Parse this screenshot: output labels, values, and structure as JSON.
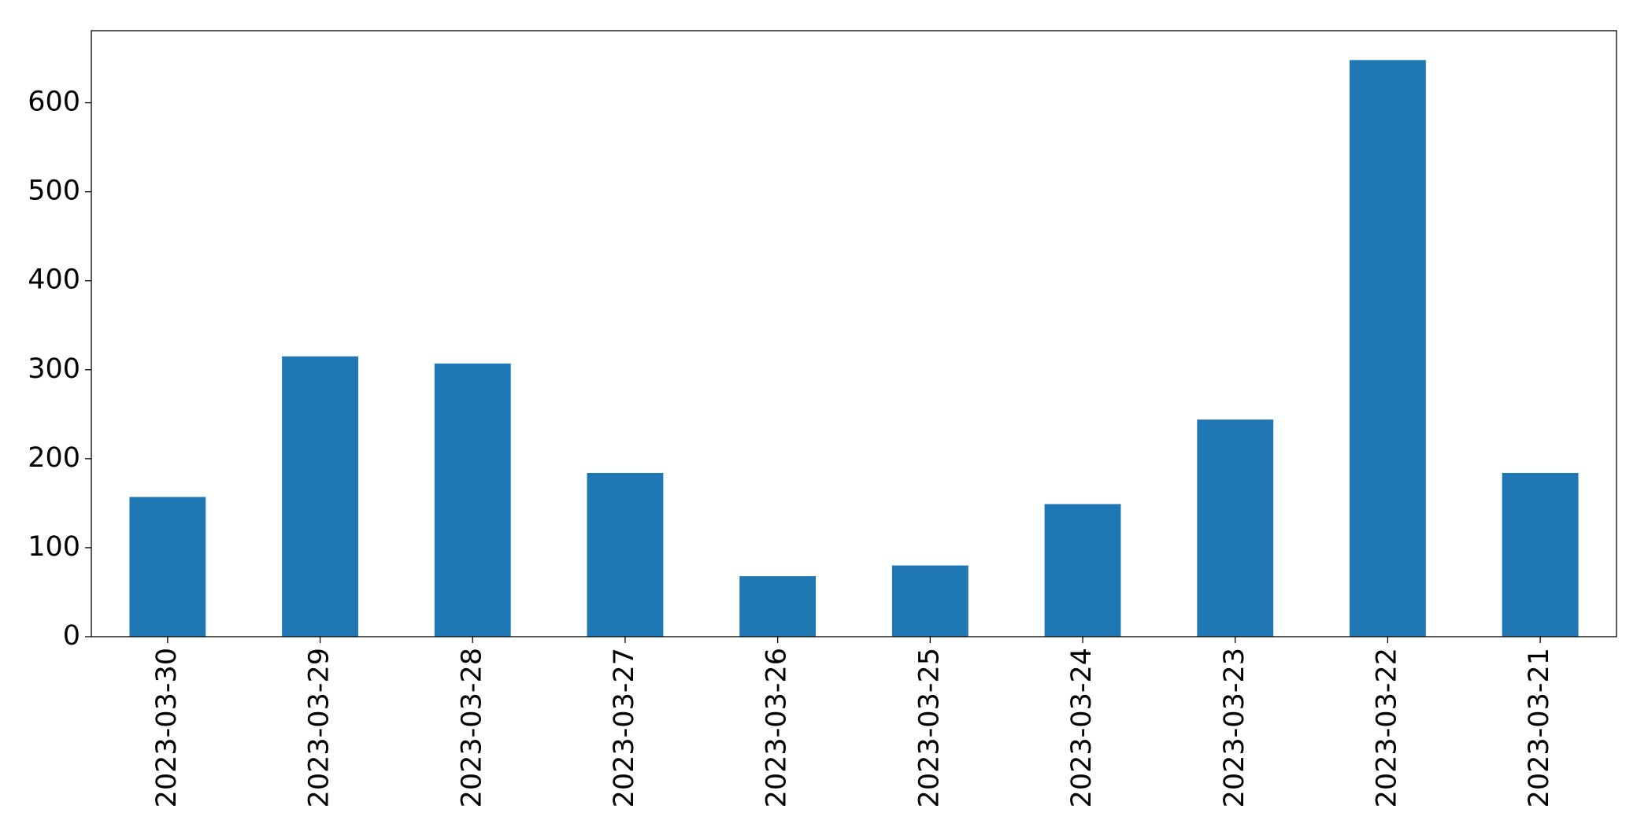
{
  "chart_data": {
    "type": "bar",
    "categories": [
      "2023-03-30",
      "2023-03-29",
      "2023-03-28",
      "2023-03-27",
      "2023-03-26",
      "2023-03-25",
      "2023-03-24",
      "2023-03-23",
      "2023-03-22",
      "2023-03-21"
    ],
    "values": [
      157,
      315,
      307,
      184,
      68,
      80,
      149,
      244,
      648,
      184
    ],
    "color": "#1f77b4",
    "ylim": [
      0,
      681
    ],
    "yticks": [
      0,
      100,
      200,
      300,
      400,
      500,
      600
    ],
    "grid": false
  }
}
